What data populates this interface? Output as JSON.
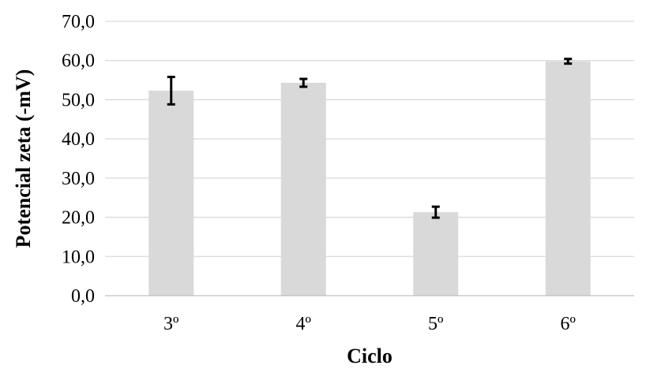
{
  "chart_data": {
    "type": "bar",
    "categories": [
      "3º",
      "4º",
      "5º",
      "6º"
    ],
    "values": [
      52.3,
      54.3,
      21.3,
      59.8
    ],
    "errors": [
      3.5,
      1.0,
      1.4,
      0.6
    ],
    "title": "",
    "xlabel": "Ciclo",
    "ylabel": "Potencial zeta (-mV)",
    "ylim": [
      0,
      70
    ],
    "yticks": [
      0,
      10,
      20,
      30,
      40,
      50,
      60,
      70
    ],
    "ytick_labels": [
      "0,0",
      "10,0",
      "20,0",
      "30,0",
      "40,0",
      "50,0",
      "60,0",
      "70,0"
    ],
    "grid": true,
    "legend": "none",
    "colors": {
      "bar": "#d9d9d9",
      "grid": "#d9d9d9",
      "axis": "#bfbfbf",
      "error_bar": "#000000",
      "text": "#000000"
    }
  }
}
